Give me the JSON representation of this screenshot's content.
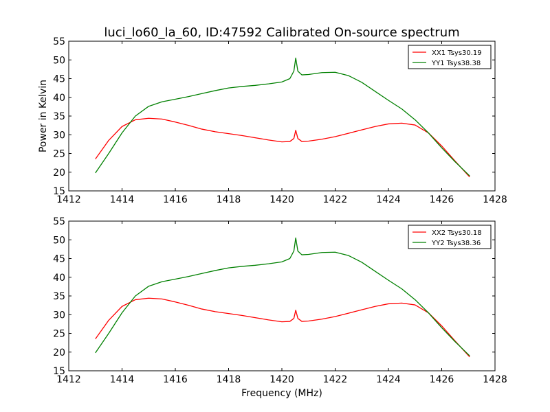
{
  "figure": {
    "title": "luci_lo60_la_60, ID:47592 Calibrated On-source spectrum",
    "ylabel": "Power in Kelvin",
    "xlabel": "Frequency (MHz)"
  },
  "chart_data": [
    {
      "type": "line",
      "title": "luci_lo60_la_60, ID:47592 Calibrated On-source spectrum",
      "xlabel": "",
      "ylabel": "Power in Kelvin",
      "xlim": [
        1412,
        1428
      ],
      "ylim": [
        15,
        55
      ],
      "xticks": [
        1412,
        1414,
        1416,
        1418,
        1420,
        1422,
        1424,
        1426,
        1428
      ],
      "yticks": [
        15,
        20,
        25,
        30,
        35,
        40,
        45,
        50,
        55
      ],
      "grid": false,
      "legend": "top-right",
      "series": [
        {
          "name": "XX1 Tsys30.19",
          "color": "#ff0000",
          "x": [
            1413.0,
            1413.5,
            1414.0,
            1414.5,
            1415.0,
            1415.5,
            1416.0,
            1416.5,
            1417.0,
            1417.5,
            1418.0,
            1418.5,
            1419.0,
            1419.5,
            1420.0,
            1420.3,
            1420.45,
            1420.52,
            1420.6,
            1420.75,
            1421.0,
            1421.5,
            1422.0,
            1422.5,
            1423.0,
            1423.5,
            1424.0,
            1424.5,
            1425.0,
            1425.5,
            1426.0,
            1426.5,
            1427.05
          ],
          "y": [
            23.5,
            28.5,
            32.2,
            34.0,
            34.4,
            34.2,
            33.4,
            32.5,
            31.5,
            30.8,
            30.3,
            29.8,
            29.2,
            28.6,
            28.1,
            28.2,
            29.0,
            31.2,
            29.0,
            28.2,
            28.3,
            28.8,
            29.5,
            30.4,
            31.3,
            32.2,
            32.9,
            33.1,
            32.6,
            30.5,
            27.0,
            23.0,
            18.7
          ]
        },
        {
          "name": "YY1 Tsys38.38",
          "color": "#008000",
          "x": [
            1413.0,
            1413.5,
            1414.0,
            1414.5,
            1415.0,
            1415.5,
            1416.0,
            1416.5,
            1417.0,
            1417.5,
            1418.0,
            1418.5,
            1419.0,
            1419.5,
            1420.0,
            1420.3,
            1420.45,
            1420.52,
            1420.6,
            1420.75,
            1421.0,
            1421.5,
            1422.0,
            1422.5,
            1423.0,
            1423.5,
            1424.0,
            1424.5,
            1425.0,
            1425.5,
            1426.0,
            1426.5,
            1427.05
          ],
          "y": [
            19.8,
            25.0,
            30.5,
            35.0,
            37.6,
            38.8,
            39.5,
            40.2,
            41.0,
            41.8,
            42.5,
            42.9,
            43.2,
            43.6,
            44.1,
            45.0,
            47.0,
            50.5,
            47.0,
            46.0,
            46.1,
            46.6,
            46.7,
            45.8,
            44.0,
            41.6,
            39.2,
            36.9,
            34.0,
            30.5,
            26.5,
            22.8,
            19.0
          ]
        }
      ]
    },
    {
      "type": "line",
      "title": "",
      "xlabel": "Frequency (MHz)",
      "ylabel": "",
      "xlim": [
        1412,
        1428
      ],
      "ylim": [
        15,
        55
      ],
      "xticks": [
        1412,
        1414,
        1416,
        1418,
        1420,
        1422,
        1424,
        1426,
        1428
      ],
      "yticks": [
        15,
        20,
        25,
        30,
        35,
        40,
        45,
        50,
        55
      ],
      "grid": false,
      "legend": "top-right",
      "series": [
        {
          "name": "XX2 Tsys30.18",
          "color": "#ff0000",
          "x": [
            1413.0,
            1413.5,
            1414.0,
            1414.5,
            1415.0,
            1415.5,
            1416.0,
            1416.5,
            1417.0,
            1417.5,
            1418.0,
            1418.5,
            1419.0,
            1419.5,
            1420.0,
            1420.3,
            1420.45,
            1420.52,
            1420.6,
            1420.75,
            1421.0,
            1421.5,
            1422.0,
            1422.5,
            1423.0,
            1423.5,
            1424.0,
            1424.5,
            1425.0,
            1425.5,
            1426.0,
            1426.5,
            1427.05
          ],
          "y": [
            23.5,
            28.5,
            32.2,
            34.0,
            34.4,
            34.2,
            33.4,
            32.5,
            31.5,
            30.8,
            30.3,
            29.8,
            29.2,
            28.6,
            28.1,
            28.2,
            29.0,
            31.2,
            29.0,
            28.2,
            28.3,
            28.8,
            29.5,
            30.4,
            31.3,
            32.2,
            32.9,
            33.1,
            32.6,
            30.5,
            27.0,
            23.0,
            18.7
          ]
        },
        {
          "name": "YY2 Tsys38.36",
          "color": "#008000",
          "x": [
            1413.0,
            1413.5,
            1414.0,
            1414.5,
            1415.0,
            1415.5,
            1416.0,
            1416.5,
            1417.0,
            1417.5,
            1418.0,
            1418.5,
            1419.0,
            1419.5,
            1420.0,
            1420.3,
            1420.45,
            1420.52,
            1420.6,
            1420.75,
            1421.0,
            1421.5,
            1422.0,
            1422.5,
            1423.0,
            1423.5,
            1424.0,
            1424.5,
            1425.0,
            1425.5,
            1426.0,
            1426.5,
            1427.05
          ],
          "y": [
            19.8,
            25.0,
            30.5,
            35.0,
            37.6,
            38.8,
            39.5,
            40.2,
            41.0,
            41.8,
            42.5,
            42.9,
            43.2,
            43.6,
            44.1,
            45.0,
            47.0,
            50.5,
            47.0,
            46.0,
            46.1,
            46.6,
            46.7,
            45.8,
            44.0,
            41.6,
            39.2,
            36.9,
            34.0,
            30.5,
            26.5,
            22.8,
            19.0
          ]
        }
      ]
    }
  ]
}
